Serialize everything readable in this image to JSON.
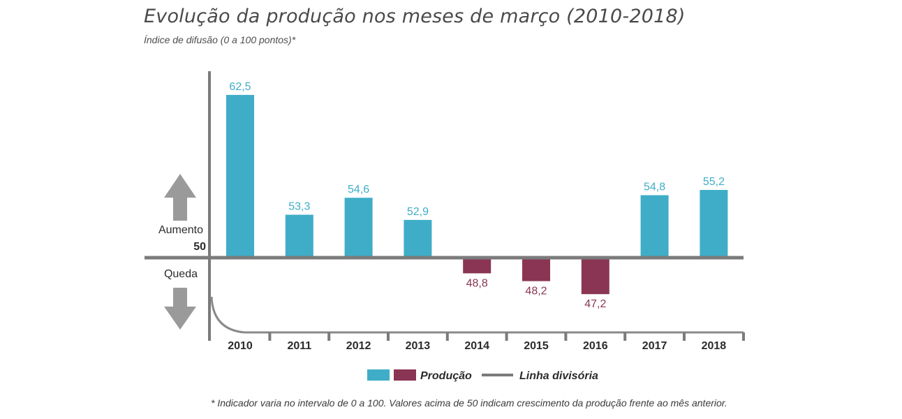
{
  "title": "Evolução da produção nos meses de março (2010-2018)",
  "subtitle": "Índice de difusão (0 a 100 pontos)*",
  "footnote": "* Indicador varia no intervalo de 0 a 100. Valores acima de 50 indicam crescimento da produção frente ao mês anterior.",
  "labels": {
    "increase": "Aumento",
    "baseline": "50",
    "decrease": "Queda"
  },
  "legend": {
    "production": "Produção",
    "divider": "Linha divisória"
  },
  "colors": {
    "above": "#3fadc7",
    "below": "#8a3553",
    "divider": "#7b7b7b",
    "arrow": "#9a9a9a"
  },
  "chart_data": {
    "type": "bar",
    "categories": [
      "2010",
      "2011",
      "2012",
      "2013",
      "2014",
      "2015",
      "2016",
      "2017",
      "2018"
    ],
    "values": [
      62.5,
      53.3,
      54.6,
      52.9,
      48.8,
      48.2,
      47.2,
      54.8,
      55.2
    ],
    "value_labels": [
      "62,5",
      "53,3",
      "54,6",
      "52,9",
      "48,8",
      "48,2",
      "47,2",
      "54,8",
      "55,2"
    ],
    "baseline": 50,
    "title": "Evolução da produção nos meses de março (2010-2018)",
    "ylabel": "Índice de difusão (0 a 100 pontos)*",
    "legend": [
      "Produção",
      "Linha divisória"
    ],
    "grid": false
  }
}
